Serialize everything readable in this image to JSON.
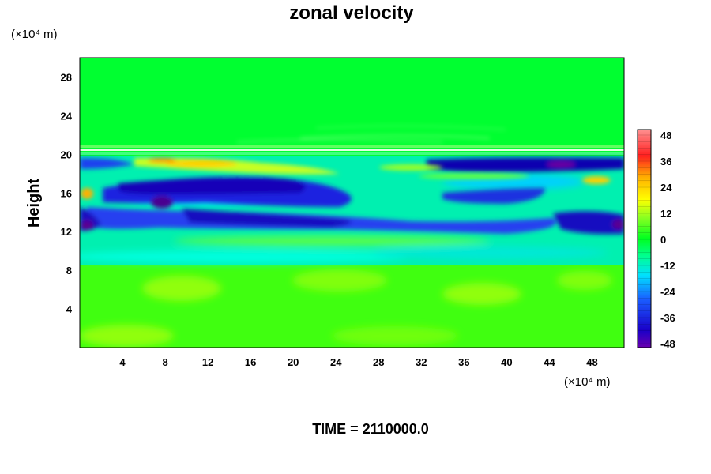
{
  "chart_data": {
    "type": "heatmap",
    "title": "zonal velocity",
    "ylabel": "Height",
    "xunit": "(×10⁴ m)",
    "yunit": "(×10⁴ m)",
    "footer": "TIME = 2110000.0",
    "x_ticks": [
      4,
      8,
      12,
      16,
      20,
      24,
      28,
      32,
      36,
      40,
      44,
      48
    ],
    "y_ticks": [
      4,
      8,
      12,
      16,
      20,
      24,
      28
    ],
    "xlim": [
      0,
      51
    ],
    "ylim": [
      0,
      30
    ],
    "colorbar": {
      "ticks": [
        48,
        36,
        24,
        12,
        0,
        -12,
        -24,
        -36,
        -48
      ],
      "range": [
        -48,
        48
      ]
    },
    "grid": false,
    "features": [
      {
        "x": [
          2,
          50
        ],
        "y": [
          16.5,
          18.5
        ],
        "value": -40
      },
      {
        "x": [
          2,
          50
        ],
        "y": [
          12,
          14
        ],
        "value": -35
      },
      {
        "x": [
          6,
          20
        ],
        "y": [
          18.5,
          19.8
        ],
        "value": 30
      },
      {
        "x": [
          33,
          50
        ],
        "y": [
          18.5,
          19.8
        ],
        "value": -46
      },
      {
        "x": [
          10,
          45
        ],
        "y": [
          10,
          12
        ],
        "value": -18
      },
      {
        "x": [
          0,
          51
        ],
        "y": [
          9,
          20
        ],
        "value": -20
      },
      {
        "x": [
          0,
          51
        ],
        "y": [
          0,
          8.5
        ],
        "value": 4
      }
    ]
  }
}
